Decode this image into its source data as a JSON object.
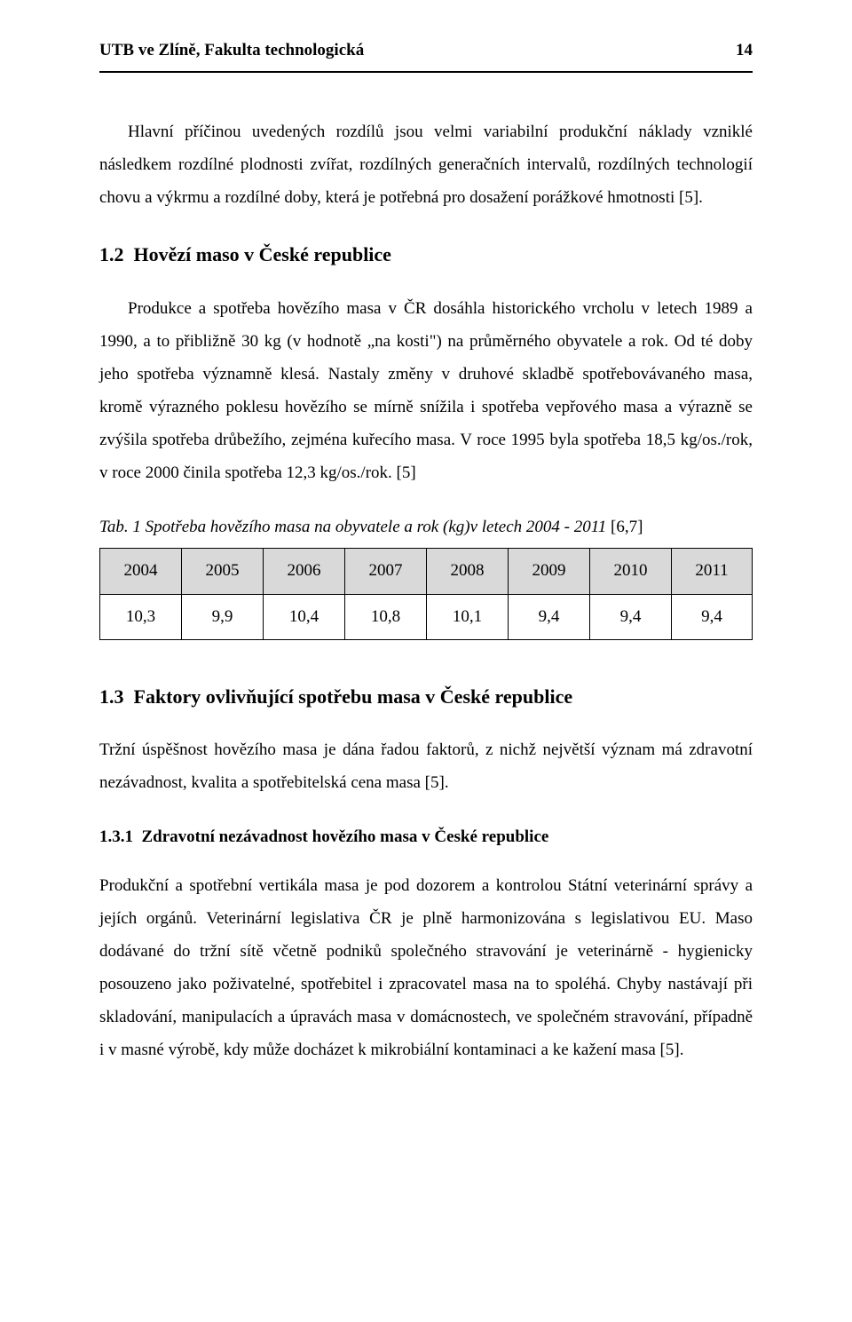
{
  "header": {
    "org": "UTB ve Zlíně, Fakulta technologická",
    "page_number": "14"
  },
  "intro_para": "Hlavní příčinou uvedených rozdílů jsou velmi variabilní produkční náklady vzniklé následkem rozdílné plodnosti zvířat, rozdílných generačních intervalů, rozdílných technologií chovu a výkrmu a rozdílné doby, která je potřebná pro dosažení porážkové hmotnosti [5].",
  "section_1_2": {
    "number": "1.2",
    "title": "Hovězí maso v České republice",
    "para": "Produkce a spotřeba hovězího masa v ČR dosáhla historického vrcholu v letech 1989 a 1990, a to přibližně 30 kg (v hodnotě „na kosti\") na průměrného obyvatele a rok. Od té doby jeho spotřeba významně klesá. Nastaly změny v druhové skladbě spotřebovávaného masa, kromě výrazného poklesu hovězího se mírně snížila i spotřeba vepřového masa a výrazně se zvýšila spotřeba drůbežího, zejména kuřecího masa. V roce 1995 byla spotřeba 18,5 kg/os./rok, v roce 2000 činila spotřeba 12,3 kg/os./rok. [5]",
    "table_caption_italic": "Tab. 1 Spotřeba hovězího masa na obyvatele a rok (kg)v letech 2004 - 2011",
    "table_caption_ref": " [6,7]",
    "table": {
      "header_bg": "#d9d9d9",
      "border_color": "#000000",
      "years": [
        "2004",
        "2005",
        "2006",
        "2007",
        "2008",
        "2009",
        "2010",
        "2011"
      ],
      "values": [
        "10,3",
        "9,9",
        "10,4",
        "10,8",
        "10,1",
        "9,4",
        "9,4",
        "9,4"
      ]
    }
  },
  "section_1_3": {
    "number": "1.3",
    "title": "Faktory ovlivňující spotřebu masa v České republice",
    "para": "Tržní úspěšnost hovězího masa je dána řadou faktorů, z nichž největší význam má zdravotní nezávadnost, kvalita a spotřebitelská cena masa [5]."
  },
  "section_1_3_1": {
    "number": "1.3.1",
    "title": "Zdravotní nezávadnost hovězího masa v České republice",
    "para": "Produkční a spotřební vertikála masa je pod dozorem a kontrolou Státní veterinární správy a jejích orgánů. Veterinární legislativa ČR je plně harmonizována s legislativou EU. Maso dodávané do tržní sítě včetně podniků společného stravování je veterinárně - hygienicky posouzeno jako poživatelné, spotřebitel i zpracovatel masa na to spoléhá. Chyby nastávají při skladování, manipulacích a úpravách masa v domácnostech, ve společném stravování, případně i v masné výrobě, kdy může docházet k mikrobiální kontaminaci a ke kažení masa [5]."
  }
}
